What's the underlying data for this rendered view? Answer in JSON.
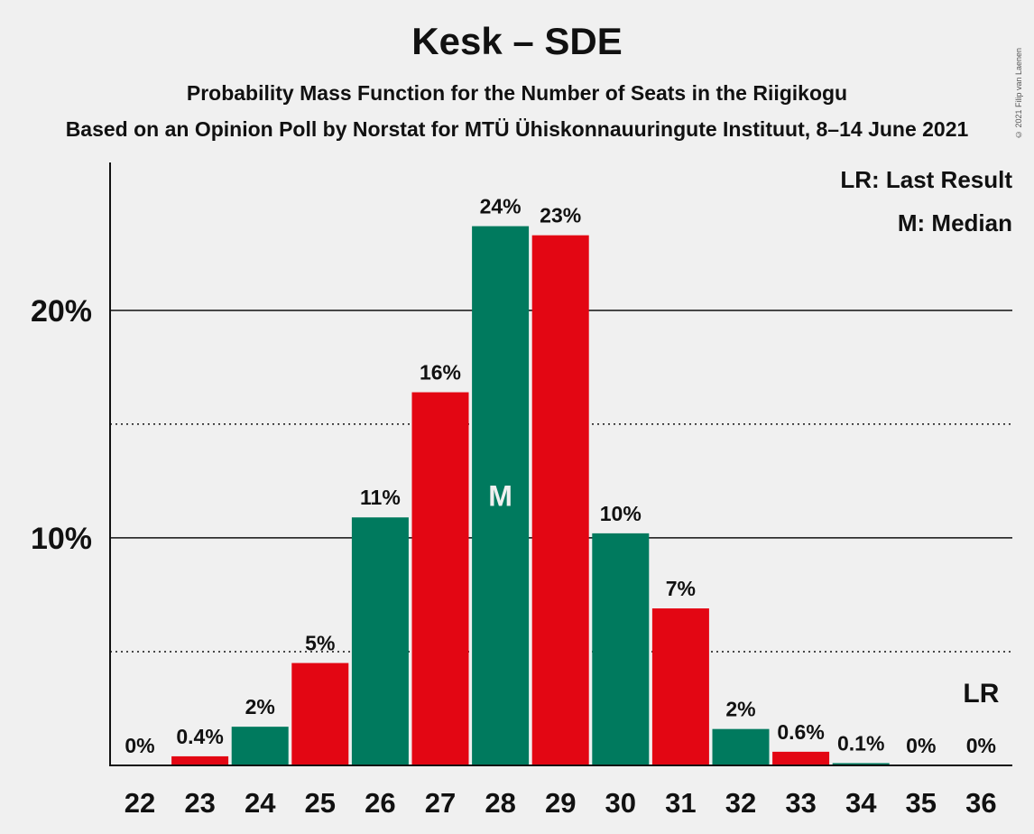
{
  "chart_data": {
    "type": "bar",
    "title": "Kesk – SDE",
    "subtitle": "Probability Mass Function for the Number of Seats in the Riigikogu",
    "subtitle2": "Based on an Opinion Poll by Norstat for MTÜ Ühiskonnauuringute Instituut, 8–14 June 2021",
    "copyright": "© 2021 Filip van Laenen",
    "legend": {
      "last_result": "LR: Last Result",
      "median": "M: Median"
    },
    "categories": [
      "22",
      "23",
      "24",
      "25",
      "26",
      "27",
      "28",
      "29",
      "30",
      "31",
      "32",
      "33",
      "34",
      "35",
      "36"
    ],
    "values": [
      0,
      0.4,
      1.7,
      4.5,
      10.9,
      16.4,
      23.7,
      23.3,
      10.2,
      6.9,
      1.6,
      0.6,
      0.1,
      0,
      0
    ],
    "data_labels": [
      "0%",
      "0.4%",
      "2%",
      "5%",
      "11%",
      "16%",
      "24%",
      "23%",
      "10%",
      "7%",
      "2%",
      "0.6%",
      "0.1%",
      "0%",
      "0%"
    ],
    "bar_colors": [
      "#007a5e",
      "#e30613"
    ],
    "median_seat": "28",
    "median_marker": "M",
    "last_result_seat": "36",
    "last_result_marker": "LR",
    "ylim": [
      0,
      26.5
    ],
    "yticks": [
      {
        "value": 10,
        "label": "10%"
      },
      {
        "value": 20,
        "label": "20%"
      }
    ],
    "minor_gridlines": [
      5,
      15
    ],
    "xlabel": "",
    "ylabel": ""
  }
}
